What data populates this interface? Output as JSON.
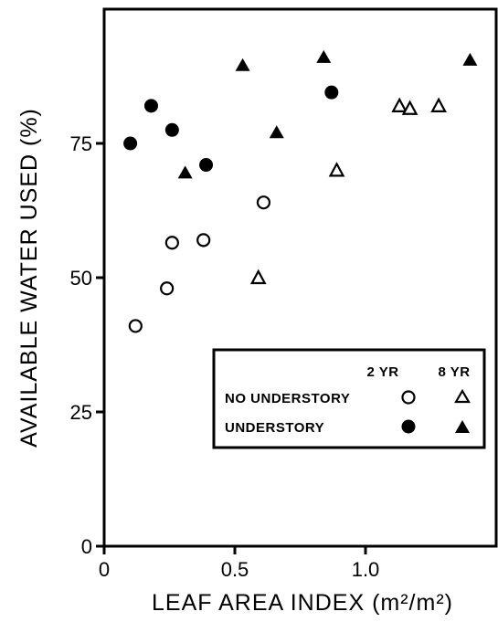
{
  "chart_data": {
    "type": "scatter",
    "title": "",
    "xlabel": "LEAF AREA INDEX (m²/m²)",
    "ylabel": "AVAILABLE WATER USED (%)",
    "xlim": [
      0,
      1.5
    ],
    "ylim": [
      0,
      100
    ],
    "x_ticks": [
      0,
      0.5,
      1.0
    ],
    "x_tick_labels": [
      "0",
      "0.5",
      "1.0"
    ],
    "y_ticks": [
      0,
      25,
      50,
      75
    ],
    "y_tick_labels": [
      "0",
      "25",
      "50",
      "75"
    ],
    "grid": false,
    "legend_position": "bottom-right",
    "legend": {
      "col_headers": [
        "2 YR",
        "8 YR"
      ],
      "row_labels": [
        "NO UNDERSTORY",
        "UNDERSTORY"
      ]
    },
    "series": [
      {
        "name": "NO UNDERSTORY 2 YR",
        "marker": "circle-open",
        "points": [
          [
            0.12,
            41
          ],
          [
            0.24,
            48
          ],
          [
            0.26,
            56.5
          ],
          [
            0.38,
            57
          ],
          [
            0.61,
            64
          ]
        ]
      },
      {
        "name": "NO UNDERSTORY 8 YR",
        "marker": "triangle-open",
        "points": [
          [
            0.59,
            50
          ],
          [
            0.89,
            70
          ],
          [
            1.13,
            82
          ],
          [
            1.17,
            81.5
          ],
          [
            1.28,
            82
          ]
        ]
      },
      {
        "name": "UNDERSTORY 2 YR",
        "marker": "circle-filled",
        "points": [
          [
            0.1,
            75
          ],
          [
            0.18,
            82
          ],
          [
            0.26,
            77.5
          ],
          [
            0.39,
            71
          ],
          [
            0.87,
            84.5
          ]
        ]
      },
      {
        "name": "UNDERSTORY 8 YR",
        "marker": "triangle-filled",
        "points": [
          [
            0.31,
            69.5
          ],
          [
            0.53,
            89.5
          ],
          [
            0.66,
            77
          ],
          [
            0.84,
            91
          ],
          [
            1.4,
            90.5
          ]
        ]
      }
    ]
  }
}
